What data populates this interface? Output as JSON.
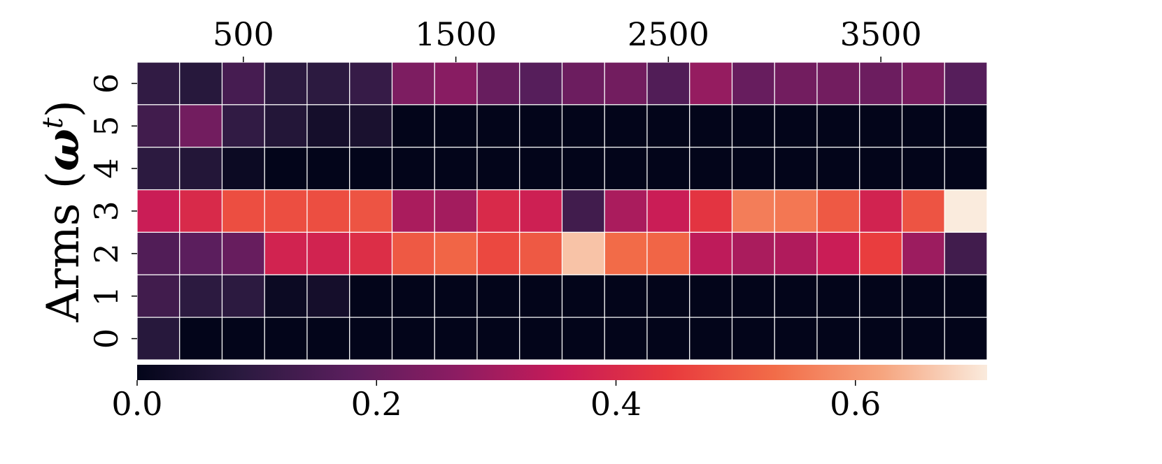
{
  "chart_data": {
    "type": "heatmap",
    "title": "",
    "ylabel": {
      "prefix": "Arms (",
      "variable": "ω",
      "superscript": "t",
      "suffix": ")"
    },
    "xlabel": "",
    "x_axis_position": "top",
    "x_ticks": [
      {
        "label": "500",
        "column": 2.5
      },
      {
        "label": "1500",
        "column": 7.5
      },
      {
        "label": "2500",
        "column": 12.5
      },
      {
        "label": "3500",
        "column": 17.5
      }
    ],
    "y_categories": [
      "6",
      "5",
      "4",
      "3",
      "2",
      "1",
      "0"
    ],
    "n_columns": 20,
    "values": [
      [
        0.1,
        0.08,
        0.14,
        0.09,
        0.09,
        0.11,
        0.24,
        0.26,
        0.2,
        0.17,
        0.21,
        0.22,
        0.16,
        0.28,
        0.2,
        0.22,
        0.22,
        0.21,
        0.23,
        0.17
      ],
      [
        0.13,
        0.22,
        0.1,
        0.07,
        0.04,
        0.05,
        0.0,
        0.0,
        0.0,
        0.0,
        0.0,
        0.0,
        0.0,
        0.0,
        0.0,
        0.0,
        0.0,
        0.0,
        0.0,
        0.0
      ],
      [
        0.09,
        0.07,
        0.02,
        0.0,
        0.0,
        0.0,
        0.0,
        0.0,
        0.0,
        0.0,
        0.0,
        0.0,
        0.0,
        0.0,
        0.0,
        0.0,
        0.0,
        0.0,
        0.0,
        0.0
      ],
      [
        0.36,
        0.4,
        0.48,
        0.48,
        0.48,
        0.49,
        0.31,
        0.3,
        0.4,
        0.37,
        0.13,
        0.31,
        0.36,
        0.43,
        0.56,
        0.55,
        0.5,
        0.38,
        0.49,
        0.71
      ],
      [
        0.16,
        0.18,
        0.2,
        0.38,
        0.38,
        0.41,
        0.5,
        0.52,
        0.47,
        0.5,
        0.66,
        0.53,
        0.52,
        0.34,
        0.31,
        0.32,
        0.36,
        0.45,
        0.29,
        0.13
      ],
      [
        0.13,
        0.09,
        0.09,
        0.02,
        0.04,
        0.0,
        0.0,
        0.0,
        0.0,
        0.0,
        0.0,
        0.0,
        0.0,
        0.0,
        0.0,
        0.0,
        0.0,
        0.0,
        0.0,
        0.0
      ],
      [
        0.08,
        0.0,
        0.0,
        0.0,
        0.0,
        0.0,
        0.0,
        0.0,
        0.0,
        0.0,
        0.0,
        0.0,
        0.0,
        0.0,
        0.0,
        0.0,
        0.0,
        0.0,
        0.0,
        0.0
      ]
    ],
    "colorbar": {
      "orientation": "horizontal",
      "placement": "bottom",
      "range": [
        0.0,
        0.71
      ],
      "ticks": [
        {
          "label": "0.0",
          "value": 0.0
        },
        {
          "label": "0.2",
          "value": 0.2
        },
        {
          "label": "0.4",
          "value": 0.4
        },
        {
          "label": "0.6",
          "value": 0.6
        }
      ],
      "colormap": "rocket",
      "stops": [
        "#03051a",
        "#2b1a40",
        "#5a1e5d",
        "#8c1c62",
        "#c81b58",
        "#e8393d",
        "#f26c48",
        "#f6a47e",
        "#faebdd"
      ]
    },
    "grid_line_color": "#ffffff"
  }
}
